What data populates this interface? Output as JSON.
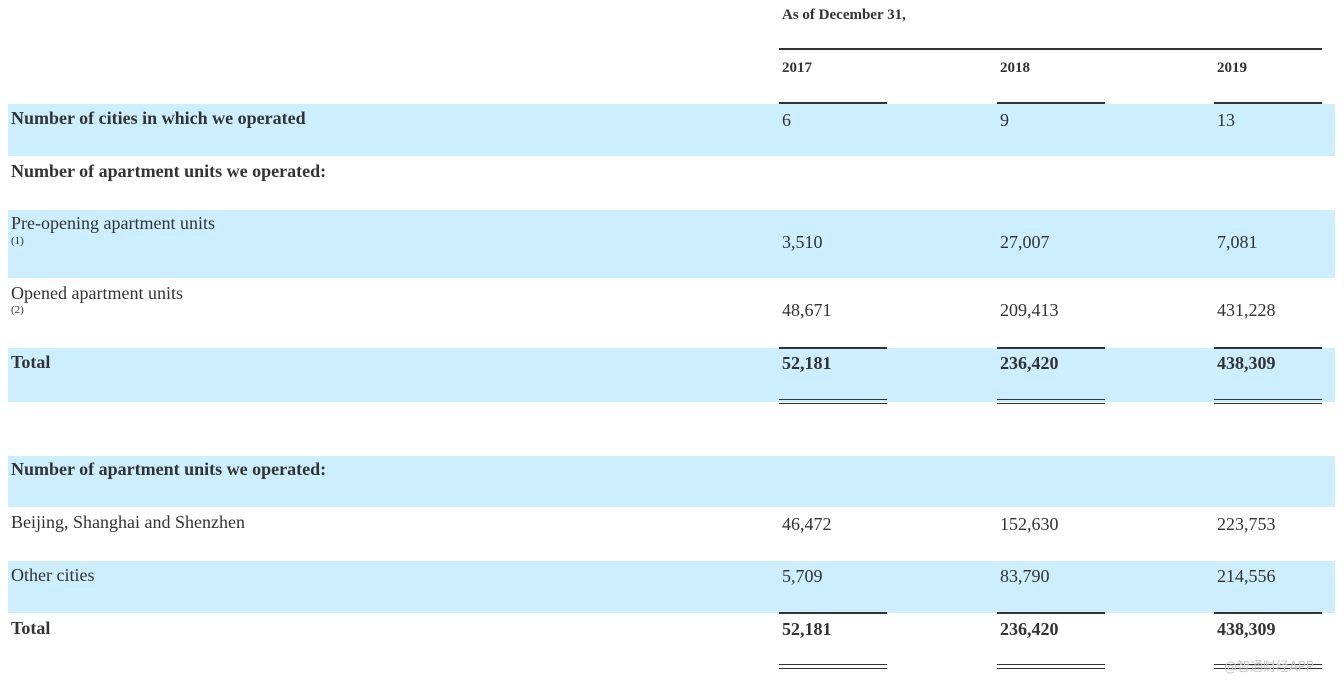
{
  "header": {
    "caption": "As of December 31,",
    "years": [
      "2017",
      "2018",
      "2019"
    ]
  },
  "rows": {
    "cities": {
      "label": "Number of cities in which we operated",
      "values": [
        "6",
        "9",
        "13"
      ]
    },
    "section1": {
      "label": "Number of apartment units we operated:"
    },
    "preopening": {
      "label": "Pre-opening apartment units",
      "note": "(1)",
      "values": [
        "3,510",
        "27,007",
        "7,081"
      ]
    },
    "opened": {
      "label": "Opened apartment units",
      "note": "(2)",
      "values": [
        "48,671",
        "209,413",
        "431,228"
      ]
    },
    "total1": {
      "label": "Total",
      "values": [
        "52,181",
        "236,420",
        "438,309"
      ]
    },
    "section2": {
      "label": "Number of apartment units we operated:"
    },
    "bss": {
      "label": "Beijing, Shanghai and Shenzhen",
      "values": [
        "46,472",
        "152,630",
        "223,753"
      ]
    },
    "other": {
      "label": "Other cities",
      "values": [
        "5,709",
        "83,790",
        "214,556"
      ]
    },
    "total2": {
      "label": "Total",
      "values": [
        "52,181",
        "236,420",
        "438,309"
      ]
    }
  },
  "watermark": "@智通财经APP",
  "colors": {
    "band": "#cceeff",
    "text": "#333333"
  }
}
